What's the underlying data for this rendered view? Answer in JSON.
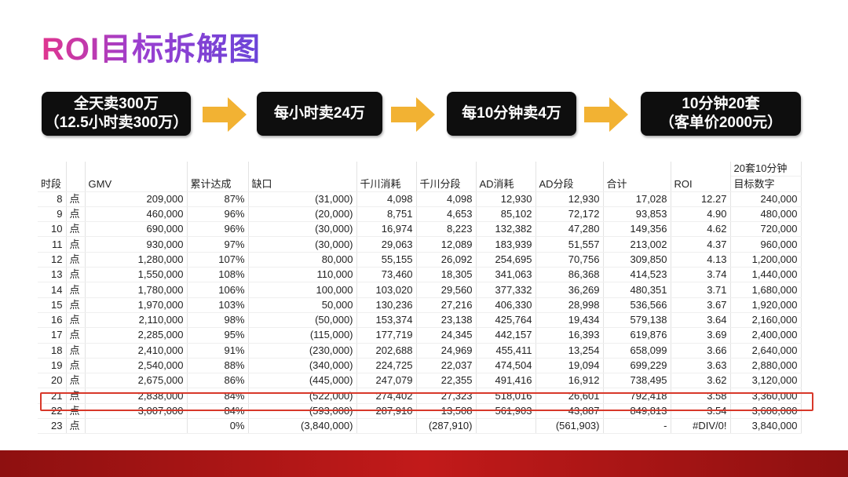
{
  "title": "ROI目标拆解图",
  "flow": [
    {
      "line1": "全天卖300万",
      "line2": "（12.5小时卖300万）"
    },
    {
      "line1": "每小时卖24万",
      "line2": ""
    },
    {
      "line1": "每10分钟卖4万",
      "line2": ""
    },
    {
      "line1": "10分钟20套",
      "line2": "（客单价2000元）"
    }
  ],
  "colors": {
    "title_start": "#e0358f",
    "title_end": "#6a44d8",
    "arrow": "#f2b233",
    "highlight": "#d8382a",
    "footer": "#b31616"
  },
  "table": {
    "top_header": "20套10分钟",
    "headers": [
      "时段",
      "",
      "GMV",
      "累计达成",
      "缺口",
      "千川消耗",
      "千川分段",
      "AD消耗",
      "AD分段",
      "合计",
      "ROI",
      "目标数字"
    ],
    "rows": [
      [
        "8",
        "点",
        "209,000",
        "87%",
        "(31,000)",
        "4,098",
        "4,098",
        "12,930",
        "12,930",
        "17,028",
        "12.27",
        "240,000"
      ],
      [
        "9",
        "点",
        "460,000",
        "96%",
        "(20,000)",
        "8,751",
        "4,653",
        "85,102",
        "72,172",
        "93,853",
        "4.90",
        "480,000"
      ],
      [
        "10",
        "点",
        "690,000",
        "96%",
        "(30,000)",
        "16,974",
        "8,223",
        "132,382",
        "47,280",
        "149,356",
        "4.62",
        "720,000"
      ],
      [
        "11",
        "点",
        "930,000",
        "97%",
        "(30,000)",
        "29,063",
        "12,089",
        "183,939",
        "51,557",
        "213,002",
        "4.37",
        "960,000"
      ],
      [
        "12",
        "点",
        "1,280,000",
        "107%",
        "80,000",
        "55,155",
        "26,092",
        "254,695",
        "70,756",
        "309,850",
        "4.13",
        "1,200,000"
      ],
      [
        "13",
        "点",
        "1,550,000",
        "108%",
        "110,000",
        "73,460",
        "18,305",
        "341,063",
        "86,368",
        "414,523",
        "3.74",
        "1,440,000"
      ],
      [
        "14",
        "点",
        "1,780,000",
        "106%",
        "100,000",
        "103,020",
        "29,560",
        "377,332",
        "36,269",
        "480,351",
        "3.71",
        "1,680,000"
      ],
      [
        "15",
        "点",
        "1,970,000",
        "103%",
        "50,000",
        "130,236",
        "27,216",
        "406,330",
        "28,998",
        "536,566",
        "3.67",
        "1,920,000"
      ],
      [
        "16",
        "点",
        "2,110,000",
        "98%",
        "(50,000)",
        "153,374",
        "23,138",
        "425,764",
        "19,434",
        "579,138",
        "3.64",
        "2,160,000"
      ],
      [
        "17",
        "点",
        "2,285,000",
        "95%",
        "(115,000)",
        "177,719",
        "24,345",
        "442,157",
        "16,393",
        "619,876",
        "3.69",
        "2,400,000"
      ],
      [
        "18",
        "点",
        "2,410,000",
        "91%",
        "(230,000)",
        "202,688",
        "24,969",
        "455,411",
        "13,254",
        "658,099",
        "3.66",
        "2,640,000"
      ],
      [
        "19",
        "点",
        "2,540,000",
        "88%",
        "(340,000)",
        "224,725",
        "22,037",
        "474,504",
        "19,094",
        "699,229",
        "3.63",
        "2,880,000"
      ],
      [
        "20",
        "点",
        "2,675,000",
        "86%",
        "(445,000)",
        "247,079",
        "22,355",
        "491,416",
        "16,912",
        "738,495",
        "3.62",
        "3,120,000"
      ],
      [
        "21",
        "点",
        "2,838,000",
        "84%",
        "(522,000)",
        "274,402",
        "27,323",
        "518,016",
        "26,601",
        "792,418",
        "3.58",
        "3,360,000"
      ],
      [
        "22",
        "点",
        "3,007,000",
        "84%",
        "(593,000)",
        "287,910",
        "13,508",
        "561,903",
        "43,887",
        "849,813",
        "3.54",
        "3,600,000"
      ],
      [
        "23",
        "点",
        "",
        "0%",
        "(3,840,000)",
        "",
        "(287,910)",
        "",
        "(561,903)",
        "-",
        "#DIV/0!",
        "3,840,000"
      ]
    ]
  }
}
